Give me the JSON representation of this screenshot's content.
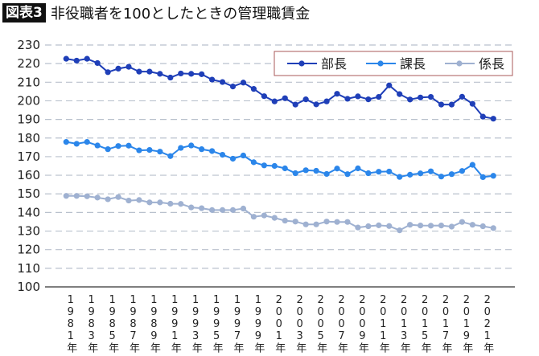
{
  "header": {
    "badge": "図表3",
    "title": "非役職者を100としたときの管理職賃金"
  },
  "chart_data": {
    "type": "line",
    "title": "非役職者を100としたときの管理職賃金",
    "xlabel": "",
    "ylabel": "",
    "ylim": [
      100,
      230
    ],
    "yticks": [
      100,
      110,
      120,
      130,
      140,
      150,
      160,
      170,
      180,
      190,
      200,
      210,
      220,
      230
    ],
    "grid": true,
    "legend_position": "top-right",
    "x": [
      1981,
      1982,
      1983,
      1984,
      1985,
      1986,
      1987,
      1988,
      1989,
      1990,
      1991,
      1992,
      1993,
      1994,
      1995,
      1996,
      1997,
      1998,
      1999,
      2000,
      2001,
      2002,
      2003,
      2004,
      2005,
      2006,
      2007,
      2008,
      2009,
      2010,
      2011,
      2012,
      2013,
      2014,
      2015,
      2016,
      2017,
      2018,
      2019,
      2020,
      2021,
      2022
    ],
    "xtick_labels": [
      "1981年",
      "1983年",
      "1985年",
      "1987年",
      "1989年",
      "1991年",
      "1993年",
      "1995年",
      "1997年",
      "1999年",
      "2001年",
      "2003年",
      "2005年",
      "2007年",
      "2009年",
      "2011年",
      "2013年",
      "2015年",
      "2017年",
      "2019年",
      "2021年"
    ],
    "series": [
      {
        "name": "部長",
        "color": "#1f3fb8",
        "values": [
          222.6,
          221.6,
          222.6,
          220.3,
          215.4,
          217.3,
          218.3,
          215.7,
          215.7,
          214.5,
          212.5,
          214.7,
          214.5,
          214.3,
          211.4,
          210.1,
          207.7,
          209.8,
          206.4,
          202.5,
          199.7,
          201.4,
          198.0,
          200.8,
          198.1,
          199.7,
          203.8,
          201.1,
          202.4,
          200.8,
          202.1,
          208.3,
          203.6,
          200.7,
          201.8,
          202.1,
          198.0,
          198.0,
          202.2,
          198.4,
          191.5,
          190.4
        ]
      },
      {
        "name": "課長",
        "color": "#2b86ea",
        "values": [
          177.9,
          176.9,
          177.9,
          176.0,
          174.0,
          175.7,
          175.9,
          173.4,
          173.6,
          172.7,
          170.3,
          174.7,
          176.0,
          174.0,
          173.0,
          171.0,
          168.9,
          170.6,
          167.0,
          165.3,
          165.0,
          163.7,
          161.1,
          162.7,
          162.4,
          160.7,
          163.6,
          160.6,
          163.7,
          161.1,
          161.9,
          162.0,
          159.1,
          160.3,
          161.0,
          162.1,
          159.3,
          160.6,
          162.3,
          165.6,
          159.0,
          159.7
        ]
      },
      {
        "name": "係長",
        "color": "#9fb1d1",
        "values": [
          148.9,
          148.9,
          148.7,
          148.0,
          147.1,
          148.3,
          146.4,
          146.7,
          145.4,
          145.4,
          144.7,
          144.6,
          142.7,
          142.3,
          141.3,
          141.3,
          141.3,
          142.1,
          137.7,
          138.4,
          137.1,
          135.6,
          135.1,
          133.6,
          133.6,
          135.1,
          134.9,
          134.9,
          131.9,
          132.6,
          133.1,
          132.7,
          130.4,
          133.4,
          133.0,
          132.9,
          133.0,
          132.4,
          134.9,
          133.4,
          132.6,
          131.6
        ]
      }
    ]
  }
}
